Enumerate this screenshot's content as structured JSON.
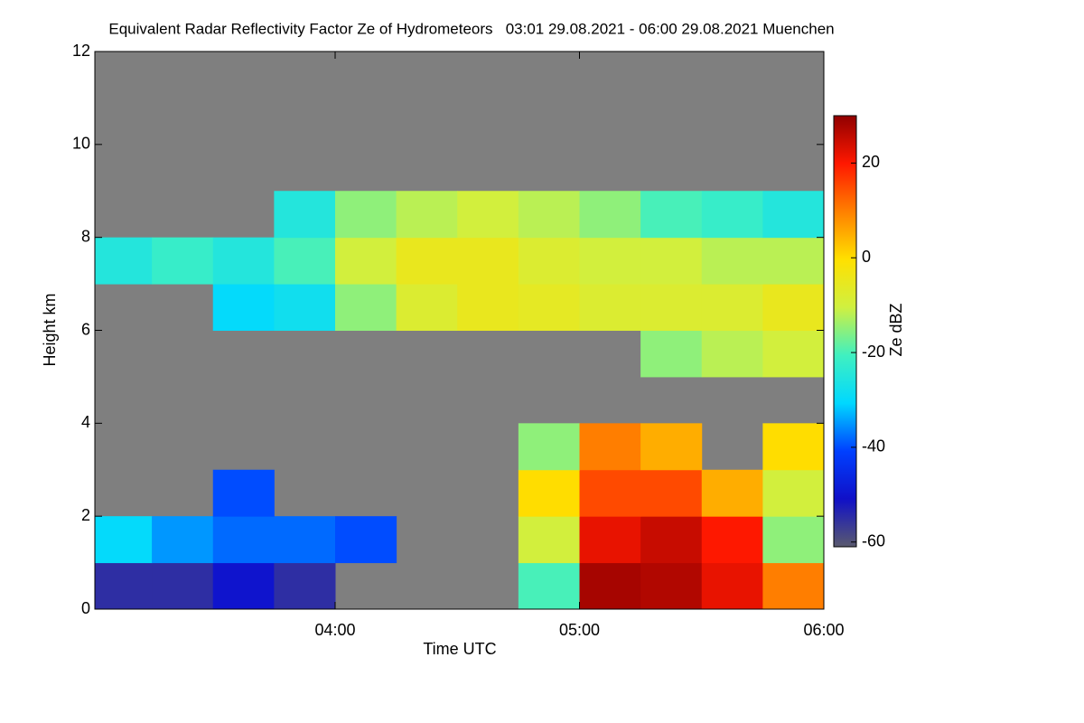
{
  "chart_data": {
    "type": "heatmap",
    "title": "Equivalent Radar Reflectivity Factor Ze of Hydrometeors   03:01 29.08.2021 - 06:00 29.08.2021 Muenchen",
    "x_label": "Time UTC",
    "y_label": "Height km",
    "colorbar_label": "Ze dBZ",
    "xlim": [
      3.0167,
      6.0
    ],
    "xticks": [
      {
        "value": 4,
        "label": "04:00"
      },
      {
        "value": 5,
        "label": "05:00"
      },
      {
        "value": 6,
        "label": "06:00"
      }
    ],
    "ylim": [
      0,
      12
    ],
    "yticks": [
      0,
      2,
      4,
      6,
      8,
      10,
      12
    ],
    "zlim": [
      -61,
      30
    ],
    "zticks": [
      -60,
      -40,
      -20,
      0,
      20
    ],
    "background": "#7f7f7f",
    "colorscale": [
      "#5a5a6e",
      "#1010c8",
      "#0040ff",
      "#00d8ff",
      "#40f0c0",
      "#d0f040",
      "#ffe000",
      "#ff8000",
      "#ff1800",
      "#900000"
    ],
    "x_bins": [
      3,
      3.25,
      3.5,
      3.75,
      4,
      4.25,
      4.5,
      4.75,
      5,
      5.25,
      5.5,
      5.75,
      6
    ],
    "y_bins": [
      0,
      1,
      2,
      3,
      4,
      5,
      6,
      7,
      8,
      9,
      10,
      11,
      12
    ],
    "z": [
      [
        -55,
        -55,
        -50,
        -55,
        null,
        null,
        null,
        -20,
        28,
        27,
        22,
        10
      ],
      [
        -30,
        -35,
        -38,
        -38,
        -40,
        null,
        null,
        -10,
        22,
        25,
        20,
        -15
      ],
      [
        null,
        null,
        -40,
        null,
        null,
        null,
        null,
        0,
        15,
        15,
        5,
        -10
      ],
      [
        null,
        null,
        null,
        null,
        null,
        null,
        null,
        -15,
        10,
        5,
        null,
        0
      ],
      [
        null,
        null,
        null,
        null,
        null,
        null,
        null,
        null,
        null,
        null,
        null,
        null
      ],
      [
        null,
        null,
        null,
        null,
        null,
        null,
        null,
        null,
        null,
        -15,
        -12,
        -10
      ],
      [
        null,
        null,
        -30,
        -28,
        -15,
        -8,
        -5,
        -6,
        -8,
        -8,
        -8,
        -5
      ],
      [
        -25,
        -22,
        -25,
        -20,
        -10,
        -5,
        -5,
        -8,
        -10,
        -10,
        -12,
        -12
      ],
      [
        null,
        null,
        null,
        -25,
        -15,
        -12,
        -10,
        -12,
        -15,
        -20,
        -22,
        -25
      ],
      [
        null,
        null,
        null,
        null,
        null,
        null,
        null,
        null,
        null,
        null,
        null,
        null
      ],
      [
        null,
        null,
        null,
        null,
        null,
        null,
        null,
        null,
        null,
        null,
        null,
        null
      ],
      [
        null,
        null,
        null,
        null,
        null,
        null,
        null,
        null,
        null,
        null,
        null,
        null
      ]
    ]
  }
}
